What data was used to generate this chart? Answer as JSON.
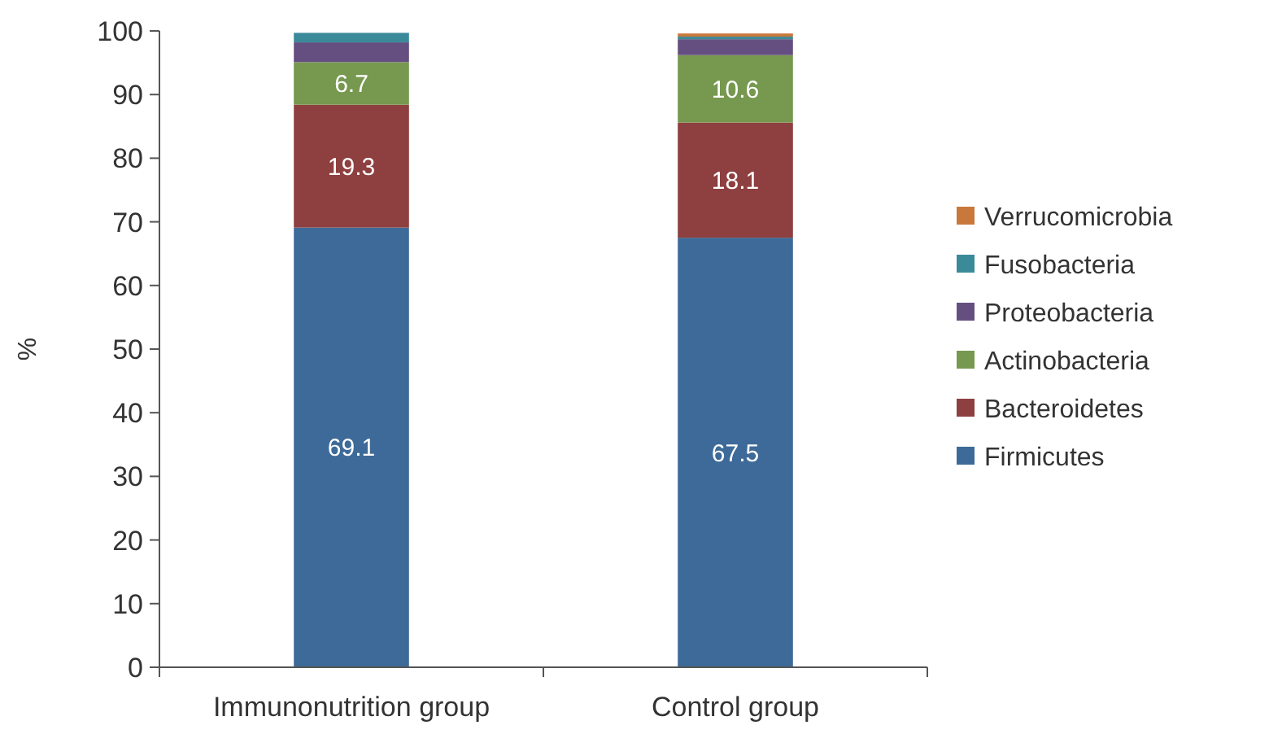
{
  "chart_data": {
    "type": "bar",
    "stacked": true,
    "ylabel": "%",
    "categories": [
      "Immunonutrition group",
      "Control group"
    ],
    "series": [
      {
        "name": "Firmicutes",
        "color": "#3d6a98",
        "values": [
          69.1,
          67.5
        ],
        "value_labels": [
          "69.1",
          "67.5"
        ]
      },
      {
        "name": "Bacteroidetes",
        "color": "#8e3f3f",
        "values": [
          19.3,
          18.1
        ],
        "value_labels": [
          "19.3",
          "18.1"
        ]
      },
      {
        "name": "Actinobacteria",
        "color": "#77984f",
        "values": [
          6.7,
          10.6
        ],
        "value_labels": [
          "6.7",
          "10.6"
        ]
      },
      {
        "name": "Proteobacteria",
        "color": "#654f80",
        "values": [
          3.1,
          2.5
        ]
      },
      {
        "name": "Fusobacteria",
        "color": "#3b8a9a",
        "values": [
          1.5,
          0.4
        ]
      },
      {
        "name": "Verrucomicrobia",
        "color": "#c8783a",
        "values": [
          0,
          0.5
        ]
      }
    ],
    "ylim": [
      0,
      100
    ],
    "yticks": [
      0,
      10,
      20,
      30,
      40,
      50,
      60,
      70,
      80,
      90,
      100
    ],
    "grid": false,
    "legend": "right"
  }
}
